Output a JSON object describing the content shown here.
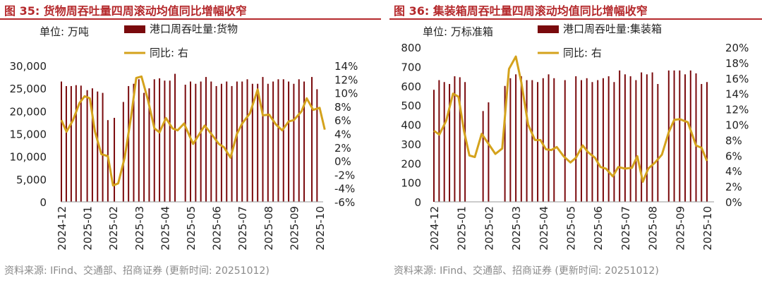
{
  "charts": [
    {
      "title": "图 35:  货物周吞吐量四周滚动均值同比增幅收窄",
      "unit_label": "单位:  万吨",
      "legend_bar": "港口周吞吐量:货物",
      "legend_line": "同比:  右",
      "source": "资料来源:  IFind、交通部、招商证券 (更新时间:  20251012)",
      "accent_color": "#b5292c",
      "bar_color": "#7a0a0d",
      "line_color": "#d4a21c"
    },
    {
      "title": "图 36:  集装箱周吞吐量四周滚动均值同比增幅收窄",
      "unit_label": "单位:  万标准箱",
      "legend_bar": "港口周吞吐量:集装箱",
      "legend_line": "同比:  右",
      "source": "资料来源:  IFind、交通部、招商证券 (更新时间:  20251012)",
      "accent_color": "#b5292c",
      "bar_color": "#7a0a0d",
      "line_color": "#d4a21c"
    }
  ],
  "chart_data": [
    {
      "type": "bar+line",
      "title": "货物周吞吐量四周滚动均值同比增幅收窄",
      "x_tick_labels": [
        "2024-12",
        "2025-01",
        "2025-02",
        "2025-03",
        "2025-04",
        "2025-05",
        "2025-06",
        "2025-07",
        "2025-08",
        "2025-09",
        "2025-10"
      ],
      "y_left": {
        "ylim": [
          0,
          30000
        ],
        "ticks": [
          "0",
          "5,000",
          "10,000",
          "15,000",
          "20,000",
          "25,000",
          "30,000"
        ],
        "label": "单位:  万吨"
      },
      "y_right": {
        "ylim": [
          -6,
          14
        ],
        "ticks": [
          "-6%",
          "-4%",
          "-2%",
          "0%",
          "2%",
          "4%",
          "6%",
          "8%",
          "10%",
          "12%",
          "14%"
        ]
      },
      "series": [
        {
          "name": "港口周吞吐量:货物",
          "type": "bar",
          "values": [
            26500,
            25500,
            25500,
            25700,
            25600,
            24600,
            25000,
            24300,
            24000,
            18000,
            18500,
            22000,
            25500,
            26000,
            27000,
            24000,
            25000,
            27000,
            27200,
            26700,
            26700,
            28200,
            25800,
            26500,
            26000,
            26500,
            27500,
            26500,
            25500,
            26000,
            26500,
            25500,
            26500,
            26500,
            27000,
            26000,
            26000,
            27500,
            26000,
            26500,
            27000,
            27000,
            26500,
            26000,
            27000,
            26500,
            27500,
            24800
          ],
          "x": [
            0,
            0.19,
            0.38,
            0.57,
            0.76,
            1,
            1.2,
            1.4,
            1.6,
            1.8,
            2.05,
            2.4,
            2.6,
            2.8,
            3,
            3.2,
            3.4,
            3.6,
            3.8,
            4,
            4.2,
            4.4,
            4.8,
            5,
            5.2,
            5.4,
            5.6,
            5.8,
            6,
            6.2,
            6.4,
            6.6,
            6.8,
            7,
            7.2,
            7.4,
            7.6,
            7.8,
            8,
            8.2,
            8.4,
            8.6,
            8.8,
            9,
            9.2,
            9.4,
            9.7,
            9.9
          ]
        },
        {
          "name": "同比:  右",
          "type": "line",
          "values": [
            6.0,
            4.3,
            6.0,
            8.5,
            9.5,
            9.2,
            4.3,
            1.0,
            0.7,
            -3.6,
            -3.3,
            0.5,
            6.5,
            12.2,
            12.4,
            9.0,
            4.8,
            4.2,
            6.3,
            4.8,
            4.5,
            5.5,
            2.5,
            5.2,
            4.0,
            2.5,
            2.0,
            0.5,
            4.0,
            5.5,
            7.0,
            10.5,
            6.7,
            6.8,
            5.4,
            4.5,
            5.8,
            6.0,
            7.3,
            9.2,
            7.5,
            7.8,
            4.6
          ],
          "x": [
            0,
            0.2,
            0.45,
            0.7,
            0.9,
            1.1,
            1.3,
            1.55,
            1.8,
            2.0,
            2.2,
            2.45,
            2.7,
            2.9,
            3.1,
            3.35,
            3.6,
            3.8,
            4.05,
            4.3,
            4.5,
            4.75,
            5.1,
            5.55,
            5.8,
            6.1,
            6.3,
            6.55,
            6.8,
            7.0,
            7.3,
            7.6,
            7.8,
            8.05,
            8.3,
            8.55,
            8.8,
            9.0,
            9.3,
            9.5,
            9.75,
            10.0,
            10.2
          ]
        }
      ]
    },
    {
      "type": "bar+line",
      "title": "集装箱周吞吐量四周滚动均值同比增幅收窄",
      "x_tick_labels": [
        "2024-12",
        "2025-01",
        "2025-02",
        "2025-03",
        "2025-04",
        "2025-05",
        "2025-06",
        "2025-07",
        "2025-08",
        "2025-09",
        "2025-10"
      ],
      "y_left": {
        "ylim": [
          0,
          800
        ],
        "ticks": [
          "0",
          "100",
          "200",
          "300",
          "400",
          "500",
          "600",
          "700",
          "800"
        ],
        "label": "单位:  万标准箱"
      },
      "y_right": {
        "ylim": [
          0,
          20
        ],
        "ticks": [
          "0%",
          "2%",
          "4%",
          "6%",
          "8%",
          "10%",
          "12%",
          "14%",
          "16%",
          "18%",
          "20%"
        ]
      },
      "series": [
        {
          "name": "港口周吞吐量:集装箱",
          "type": "bar",
          "values": [
            580,
            630,
            620,
            610,
            650,
            645,
            620,
            470,
            515,
            600,
            640,
            660,
            650,
            630,
            630,
            620,
            640,
            660,
            640,
            630,
            650,
            630,
            640,
            620,
            630,
            640,
            650,
            620,
            680,
            660,
            650,
            630,
            670,
            660,
            670,
            610,
            680,
            680,
            680,
            660,
            680,
            665,
            610,
            620
          ],
          "x": [
            0,
            0.19,
            0.38,
            0.57,
            0.76,
            0.95,
            1.14,
            1.8,
            2.0,
            2.6,
            2.8,
            3.0,
            3.2,
            3.4,
            3.6,
            3.8,
            4.0,
            4.2,
            4.4,
            4.8,
            5.2,
            5.4,
            5.6,
            5.8,
            6.0,
            6.2,
            6.4,
            6.6,
            6.8,
            7.0,
            7.2,
            7.4,
            7.6,
            7.8,
            8.0,
            8.2,
            8.6,
            8.8,
            9.0,
            9.2,
            9.4,
            9.6,
            9.8,
            10.0
          ]
        },
        {
          "name": "同比:  右",
          "type": "line",
          "values": [
            9.2,
            8.7,
            10.5,
            14.0,
            13.6,
            9.2,
            6.0,
            5.8,
            8.8,
            7.5,
            6.2,
            6.9,
            17.2,
            18.8,
            15.5,
            10.0,
            8.0,
            8.0,
            6.8,
            6.7,
            7.1,
            5.9,
            5.1,
            5.7,
            7.3,
            6.4,
            5.7,
            4.5,
            4.3,
            3.3,
            4.5,
            4.3,
            4.4,
            5.9,
            2.6,
            4.3,
            5.1,
            6.1,
            9.0,
            10.6,
            10.7,
            10.3,
            7.3,
            7.0,
            5.3
          ],
          "x": [
            0,
            0.2,
            0.45,
            0.7,
            0.9,
            1.1,
            1.3,
            1.5,
            1.75,
            2.0,
            2.25,
            2.5,
            2.75,
            3.0,
            3.2,
            3.45,
            3.7,
            3.9,
            4.1,
            4.3,
            4.5,
            4.75,
            5.0,
            5.2,
            5.45,
            5.65,
            5.9,
            6.1,
            6.3,
            6.55,
            6.75,
            7.0,
            7.25,
            7.45,
            7.65,
            7.85,
            8.1,
            8.35,
            8.6,
            8.8,
            9.0,
            9.3,
            9.6,
            9.8,
            10.0
          ]
        }
      ]
    }
  ]
}
